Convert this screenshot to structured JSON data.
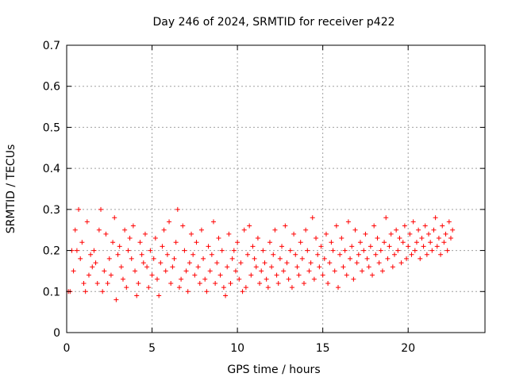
{
  "chart_data": {
    "type": "scatter",
    "title": "Day 246 of 2024, SRMTID for receiver p422",
    "xlabel": "GPS time / hours",
    "ylabel": "SRMTID / TECUs",
    "xlim": [
      0,
      24.5
    ],
    "ylim": [
      0,
      0.7
    ],
    "xticks": [
      0,
      5,
      10,
      15,
      20
    ],
    "yticks": [
      0,
      0.1,
      0.2,
      0.3,
      0.4,
      0.5,
      0.6,
      0.7
    ],
    "xtick_labels": [
      "0",
      "5",
      "10",
      "15",
      "20"
    ],
    "ytick_labels": [
      "0",
      "0.1",
      "0.2",
      "0.3",
      "0.4",
      "0.5",
      "0.6",
      "0.7"
    ],
    "grid": true,
    "marker": "+",
    "color": "#ff0000",
    "series": [
      {
        "name": "SRMTID",
        "x": [
          0.0,
          0.1,
          0.1,
          0.2,
          0.3,
          0.4,
          0.5,
          0.6,
          0.7,
          0.8,
          0.9,
          1.0,
          1.1,
          1.2,
          1.3,
          1.4,
          1.5,
          1.6,
          1.7,
          1.8,
          1.9,
          2.0,
          2.1,
          2.2,
          2.3,
          2.4,
          2.5,
          2.6,
          2.7,
          2.8,
          2.9,
          3.0,
          3.1,
          3.2,
          3.3,
          3.4,
          3.5,
          3.6,
          3.7,
          3.8,
          3.9,
          4.0,
          4.1,
          4.2,
          4.3,
          4.4,
          4.5,
          4.6,
          4.7,
          4.8,
          4.9,
          5.0,
          5.1,
          5.2,
          5.3,
          5.4,
          5.5,
          5.6,
          5.7,
          5.8,
          5.9,
          6.0,
          6.1,
          6.2,
          6.3,
          6.4,
          6.5,
          6.6,
          6.7,
          6.8,
          6.9,
          7.0,
          7.1,
          7.2,
          7.3,
          7.4,
          7.5,
          7.6,
          7.7,
          7.8,
          7.9,
          8.0,
          8.1,
          8.2,
          8.3,
          8.4,
          8.5,
          8.6,
          8.7,
          8.8,
          8.9,
          9.0,
          9.1,
          9.2,
          9.3,
          9.4,
          9.5,
          9.6,
          9.7,
          9.8,
          9.9,
          10.0,
          10.1,
          10.2,
          10.3,
          10.4,
          10.5,
          10.6,
          10.7,
          10.8,
          10.9,
          11.0,
          11.1,
          11.2,
          11.3,
          11.4,
          11.5,
          11.6,
          11.7,
          11.8,
          11.9,
          12.0,
          12.1,
          12.2,
          12.3,
          12.4,
          12.5,
          12.6,
          12.7,
          12.8,
          12.9,
          13.0,
          13.1,
          13.2,
          13.3,
          13.4,
          13.5,
          13.6,
          13.7,
          13.8,
          13.9,
          14.0,
          14.1,
          14.2,
          14.3,
          14.4,
          14.5,
          14.6,
          14.7,
          14.8,
          14.9,
          15.0,
          15.1,
          15.2,
          15.3,
          15.4,
          15.5,
          15.6,
          15.7,
          15.8,
          15.9,
          16.0,
          16.1,
          16.2,
          16.3,
          16.4,
          16.5,
          16.6,
          16.7,
          16.8,
          16.9,
          17.0,
          17.1,
          17.2,
          17.3,
          17.4,
          17.5,
          17.6,
          17.7,
          17.8,
          17.9,
          18.0,
          18.1,
          18.2,
          18.3,
          18.4,
          18.5,
          18.6,
          18.7,
          18.8,
          18.9,
          19.0,
          19.1,
          19.2,
          19.3,
          19.4,
          19.5,
          19.6,
          19.7,
          19.8,
          19.9,
          20.0,
          20.1,
          20.2,
          20.3,
          20.4,
          20.5,
          20.6,
          20.7,
          20.8,
          20.9,
          21.0,
          21.1,
          21.2,
          21.3,
          21.4,
          21.5,
          21.6,
          21.7,
          21.8,
          21.9,
          22.0,
          22.1,
          22.2,
          22.3,
          22.4,
          22.5,
          22.6,
          22.7,
          22.8,
          0.1,
          0.1,
          0.2,
          0.15,
          0.25,
          0.2,
          0.3,
          0.18,
          0.22,
          0.12,
          0.1,
          0.27,
          0.14,
          0.19,
          0.16,
          0.2,
          0.17,
          0.12,
          0.25,
          0.3,
          0.1,
          0.15,
          0.24,
          0.12,
          0.18,
          0.14,
          0.22,
          0.28,
          0.08,
          0.19,
          0.21,
          0.16,
          0.13,
          0.25,
          0.11,
          0.2,
          0.23,
          0.18,
          0.26,
          0.15,
          0.09,
          0.12,
          0.22,
          0.19,
          0.17,
          0.24,
          0.16,
          0.11,
          0.2,
          0.14,
          0.18,
          0.23,
          0.13,
          0.09,
          0.17,
          0.21,
          0.25,
          0.15,
          0.19,
          0.27,
          0.12,
          0.16,
          0.18,
          0.22,
          0.3,
          0.11,
          0.13,
          0.26,
          0.2,
          0.15,
          0.1,
          0.17,
          0.24,
          0.19,
          0.14,
          0.22,
          0.16,
          0.12,
          0.25,
          0.18,
          0.13,
          0.1,
          0.21,
          0.15,
          0.19,
          0.27,
          0.12,
          0.17,
          0.23,
          0.14,
          0.2,
          0.11,
          0.09,
          0.16,
          0.24,
          0.12,
          0.18,
          0.2,
          0.15,
          0.22,
          0.13,
          0.17,
          0.1,
          0.25,
          0.11,
          0.19,
          0.26,
          0.14,
          0.21,
          0.18,
          0.16,
          0.23,
          0.12,
          0.15,
          0.2,
          0.17,
          0.13,
          0.11,
          0.22,
          0.16,
          0.19,
          0.25,
          0.14,
          0.12,
          0.18,
          0.21,
          0.15,
          0.26,
          0.17,
          0.13,
          0.2,
          0.11,
          0.24,
          0.19,
          0.16,
          0.14,
          0.22,
          0.18,
          0.12,
          0.25,
          0.2,
          0.15,
          0.17,
          0.28,
          0.13,
          0.23,
          0.19,
          0.16,
          0.21,
          0.14,
          0.18,
          0.24,
          0.12,
          0.17,
          0.22,
          0.2,
          0.15,
          0.26,
          0.11,
          0.19,
          0.23,
          0.16,
          0.2,
          0.14,
          0.27,
          0.18,
          0.21,
          0.13,
          0.25,
          0.17,
          0.19,
          0.22,
          0.15,
          0.2,
          0.24,
          0.18,
          0.16,
          0.21,
          0.14,
          0.26,
          0.19,
          0.23,
          0.17,
          0.2,
          0.15,
          0.22,
          0.28,
          0.18,
          0.21,
          0.24,
          0.16,
          0.19,
          0.25,
          0.2,
          0.23,
          0.17,
          0.22,
          0.26,
          0.18,
          0.21,
          0.24,
          0.19,
          0.27,
          0.2,
          0.22,
          0.25,
          0.18,
          0.23,
          0.21,
          0.26,
          0.19,
          0.24,
          0.22,
          0.2,
          0.25,
          0.28,
          0.21,
          0.23,
          0.19,
          0.26,
          0.22,
          0.24,
          0.2,
          0.27,
          0.23,
          0.25
        ]
      }
    ],
    "point_count_note": "dense scatter; representative sample points"
  }
}
